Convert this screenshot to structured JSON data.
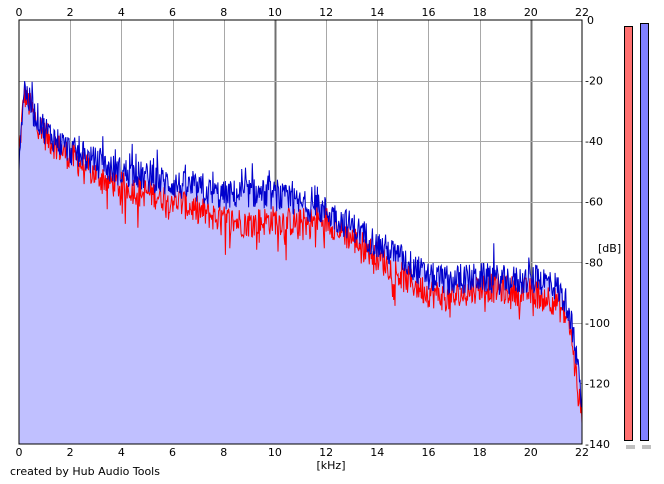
{
  "chart_data": {
    "type": "area",
    "title": "",
    "xlabel": "[kHz]",
    "ylabel": "[dB]",
    "xlim": [
      0,
      22
    ],
    "ylim": [
      -140,
      0
    ],
    "x_ticks": [
      "0",
      "2",
      "4",
      "6",
      "8",
      "10",
      "12",
      "14",
      "16",
      "18",
      "20",
      "22"
    ],
    "y_ticks": [
      "0",
      "-20",
      "-40",
      "-60",
      "-80",
      "-100",
      "-120",
      "-140"
    ],
    "grid": true,
    "series": [
      {
        "color": "#ff0000",
        "x": [
          0,
          0.2,
          0.4,
          0.6,
          0.8,
          1,
          1.5,
          2,
          2.5,
          3,
          3.5,
          4,
          5,
          6,
          7,
          8,
          9,
          10,
          11,
          12,
          12.5,
          13,
          13.5,
          14,
          15,
          16,
          17,
          18,
          19,
          20,
          20.5,
          21,
          21.5,
          22
        ],
        "values": [
          -45,
          -24,
          -28,
          -32,
          -35,
          -38,
          -42,
          -45,
          -48,
          -51,
          -53,
          -55,
          -57,
          -59,
          -63,
          -66,
          -67,
          -66,
          -67,
          -66,
          -69,
          -72,
          -75,
          -78,
          -85,
          -90,
          -92,
          -88,
          -89,
          -90,
          -91,
          -93,
          -100,
          -133
        ]
      },
      {
        "color": "#0000cc",
        "x": [
          0,
          0.2,
          0.4,
          0.6,
          0.8,
          1,
          1.5,
          2,
          2.5,
          3,
          3.5,
          4,
          5,
          6,
          7,
          8,
          9,
          10,
          11,
          12,
          12.5,
          13,
          13.5,
          14,
          15,
          16,
          17,
          18,
          19,
          20,
          20.5,
          21,
          21.5,
          22
        ],
        "values": [
          -45,
          -22,
          -27,
          -31,
          -33,
          -36,
          -40,
          -43,
          -45,
          -47,
          -49,
          -50,
          -52,
          -54,
          -56,
          -58,
          -57,
          -58,
          -61,
          -63,
          -66,
          -68,
          -71,
          -74,
          -79,
          -85,
          -86,
          -85,
          -86,
          -86,
          -86,
          -88,
          -95,
          -126
        ]
      }
    ],
    "level_meters": [
      {
        "color": "#ff7070",
        "level_db": -2
      },
      {
        "color": "#8080ff",
        "level_db": -1
      }
    ]
  },
  "footer": {
    "credit": "created by Hub Audio Tools"
  }
}
